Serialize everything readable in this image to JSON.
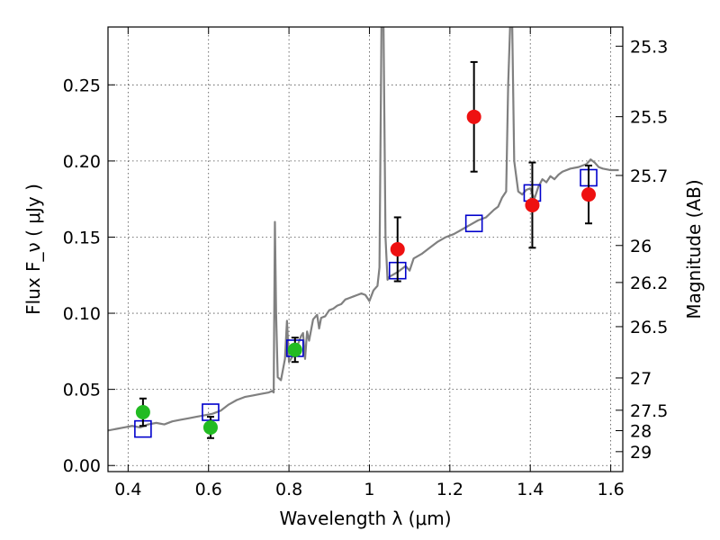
{
  "chart_data": {
    "type": "scatter",
    "title": "",
    "xlabel": "Wavelength  λ (μm)",
    "ylabel": "Flux  F_ν  ( μJy )",
    "ylabel_right": "Magnitude (AB)",
    "xlim": [
      0.35,
      1.63
    ],
    "ylim": [
      -0.004,
      0.288
    ],
    "grid": true,
    "x_ticks": [
      0.4,
      0.6,
      0.8,
      1.0,
      1.2,
      1.4,
      1.6
    ],
    "x_tick_labels": [
      "0.4",
      "0.6",
      "0.8",
      "1",
      "1.2",
      "1.4",
      "1.6"
    ],
    "y_ticks": [
      0.0,
      0.05,
      0.1,
      0.15,
      0.2,
      0.25
    ],
    "y_tick_labels": [
      "0.00",
      "0.05",
      "0.10",
      "0.15",
      "0.20",
      "0.25"
    ],
    "right_ticks": [
      {
        "label": "25.3",
        "flux": 0.2754
      },
      {
        "label": "25.5",
        "flux": 0.2291
      },
      {
        "label": "25.7",
        "flux": 0.1905
      },
      {
        "label": "26",
        "flux": 0.1445
      },
      {
        "label": "26.2",
        "flux": 0.1202
      },
      {
        "label": "26.5",
        "flux": 0.0912
      },
      {
        "label": "27",
        "flux": 0.0575
      },
      {
        "label": "27.5",
        "flux": 0.0363
      },
      {
        "label": "28",
        "flux": 0.0229
      },
      {
        "label": "29",
        "flux": 0.0091
      }
    ],
    "series": [
      {
        "type": "line",
        "color": "#808080",
        "points": [
          [
            0.35,
            0.023
          ],
          [
            0.37,
            0.024
          ],
          [
            0.39,
            0.025
          ],
          [
            0.41,
            0.026
          ],
          [
            0.43,
            0.025
          ],
          [
            0.45,
            0.027
          ],
          [
            0.47,
            0.028
          ],
          [
            0.49,
            0.027
          ],
          [
            0.51,
            0.029
          ],
          [
            0.53,
            0.03
          ],
          [
            0.55,
            0.031
          ],
          [
            0.57,
            0.032
          ],
          [
            0.59,
            0.033
          ],
          [
            0.61,
            0.034
          ],
          [
            0.63,
            0.036
          ],
          [
            0.65,
            0.04
          ],
          [
            0.67,
            0.043
          ],
          [
            0.69,
            0.045
          ],
          [
            0.71,
            0.046
          ],
          [
            0.73,
            0.047
          ],
          [
            0.75,
            0.048
          ],
          [
            0.758,
            0.049
          ],
          [
            0.762,
            0.048
          ],
          [
            0.765,
            0.16
          ],
          [
            0.768,
            0.1
          ],
          [
            0.772,
            0.058
          ],
          [
            0.78,
            0.056
          ],
          [
            0.79,
            0.07
          ],
          [
            0.795,
            0.095
          ],
          [
            0.8,
            0.068
          ],
          [
            0.81,
            0.072
          ],
          [
            0.82,
            0.078
          ],
          [
            0.83,
            0.085
          ],
          [
            0.835,
            0.087
          ],
          [
            0.84,
            0.07
          ],
          [
            0.845,
            0.088
          ],
          [
            0.85,
            0.082
          ],
          [
            0.86,
            0.096
          ],
          [
            0.87,
            0.099
          ],
          [
            0.875,
            0.09
          ],
          [
            0.88,
            0.097
          ],
          [
            0.89,
            0.098
          ],
          [
            0.9,
            0.102
          ],
          [
            0.91,
            0.103
          ],
          [
            0.92,
            0.105
          ],
          [
            0.93,
            0.106
          ],
          [
            0.94,
            0.109
          ],
          [
            0.95,
            0.11
          ],
          [
            0.96,
            0.111
          ],
          [
            0.97,
            0.112
          ],
          [
            0.98,
            0.113
          ],
          [
            0.99,
            0.112
          ],
          [
            1.0,
            0.108
          ],
          [
            1.01,
            0.115
          ],
          [
            1.02,
            0.118
          ],
          [
            1.025,
            0.13
          ],
          [
            1.03,
            0.29
          ],
          [
            1.035,
            0.29
          ],
          [
            1.04,
            0.15
          ],
          [
            1.045,
            0.122
          ],
          [
            1.05,
            0.124
          ],
          [
            1.07,
            0.127
          ],
          [
            1.09,
            0.131
          ],
          [
            1.1,
            0.128
          ],
          [
            1.11,
            0.136
          ],
          [
            1.13,
            0.139
          ],
          [
            1.15,
            0.143
          ],
          [
            1.17,
            0.147
          ],
          [
            1.19,
            0.15
          ],
          [
            1.21,
            0.152
          ],
          [
            1.23,
            0.155
          ],
          [
            1.25,
            0.158
          ],
          [
            1.27,
            0.161
          ],
          [
            1.29,
            0.163
          ],
          [
            1.31,
            0.168
          ],
          [
            1.32,
            0.17
          ],
          [
            1.33,
            0.176
          ],
          [
            1.34,
            0.18
          ],
          [
            1.345,
            0.25
          ],
          [
            1.35,
            0.29
          ],
          [
            1.355,
            0.29
          ],
          [
            1.36,
            0.2
          ],
          [
            1.37,
            0.18
          ],
          [
            1.38,
            0.178
          ],
          [
            1.39,
            0.181
          ],
          [
            1.4,
            0.182
          ],
          [
            1.41,
            0.175
          ],
          [
            1.42,
            0.183
          ],
          [
            1.43,
            0.188
          ],
          [
            1.44,
            0.186
          ],
          [
            1.45,
            0.19
          ],
          [
            1.46,
            0.188
          ],
          [
            1.47,
            0.191
          ],
          [
            1.48,
            0.193
          ],
          [
            1.5,
            0.195
          ],
          [
            1.52,
            0.196
          ],
          [
            1.54,
            0.198
          ],
          [
            1.55,
            0.201
          ],
          [
            1.56,
            0.199
          ],
          [
            1.57,
            0.196
          ],
          [
            1.58,
            0.195
          ],
          [
            1.6,
            0.194
          ],
          [
            1.62,
            0.194
          ]
        ]
      },
      {
        "type": "scatter",
        "marker": "square",
        "color": "#0000cc",
        "points": [
          [
            0.437,
            0.024
          ],
          [
            0.605,
            0.035
          ],
          [
            0.815,
            0.077
          ],
          [
            1.07,
            0.128
          ],
          [
            1.26,
            0.159
          ],
          [
            1.405,
            0.179
          ],
          [
            1.545,
            0.189
          ]
        ]
      },
      {
        "type": "scatter",
        "marker": "circle",
        "color": "#22bb22",
        "points": [
          {
            "x": 0.437,
            "y": 0.035,
            "err": 0.009
          },
          {
            "x": 0.605,
            "y": 0.025,
            "err": 0.007
          },
          {
            "x": 0.815,
            "y": 0.076,
            "err": 0.008
          }
        ]
      },
      {
        "type": "scatter",
        "marker": "circle",
        "color": "#ee1111",
        "points": [
          {
            "x": 1.07,
            "y": 0.142,
            "err": 0.021
          },
          {
            "x": 1.26,
            "y": 0.229,
            "err": 0.036
          },
          {
            "x": 1.405,
            "y": 0.171,
            "err": 0.028
          },
          {
            "x": 1.545,
            "y": 0.178,
            "err": 0.019
          }
        ]
      }
    ]
  }
}
